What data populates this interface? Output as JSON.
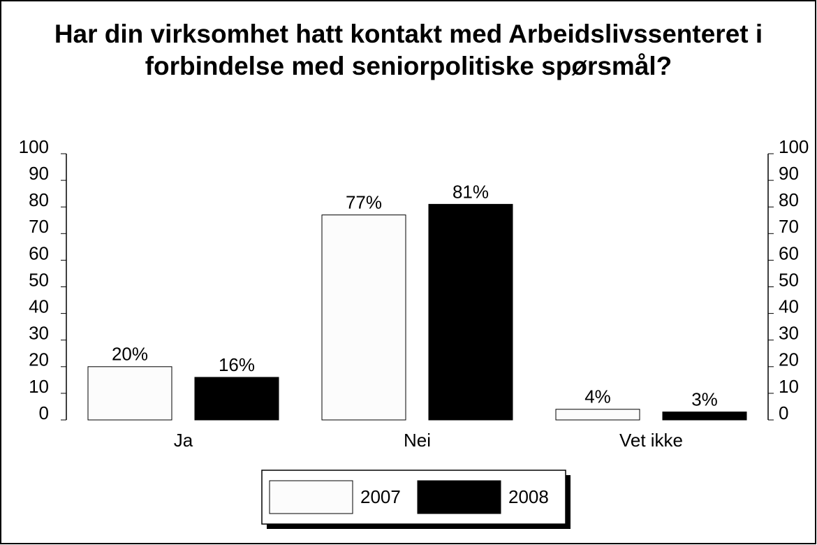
{
  "chart_data": {
    "type": "bar",
    "title": "Har din virksomhet hatt kontakt med Arbeidslivssenteret i forbindelse med seniorpolitiske spørsmål?",
    "categories": [
      "Ja",
      "Nei",
      "Vet ikke"
    ],
    "series": [
      {
        "name": "2007",
        "color": "#fcfcfc",
        "values": [
          20,
          77,
          4
        ],
        "value_labels": [
          "20%",
          "77%",
          "4%"
        ]
      },
      {
        "name": "2008",
        "color": "#000000",
        "values": [
          16,
          81,
          3
        ],
        "value_labels": [
          "16%",
          "81%",
          "3%"
        ]
      }
    ],
    "ylim": [
      0,
      100
    ],
    "yticks": [
      0,
      10,
      20,
      30,
      40,
      50,
      60,
      70,
      80,
      90,
      100
    ],
    "y2lim": [
      0,
      100
    ],
    "y2ticks": [
      0,
      10,
      20,
      30,
      40,
      50,
      60,
      70,
      80,
      90,
      100
    ],
    "grid": false,
    "legend": "bottom"
  }
}
